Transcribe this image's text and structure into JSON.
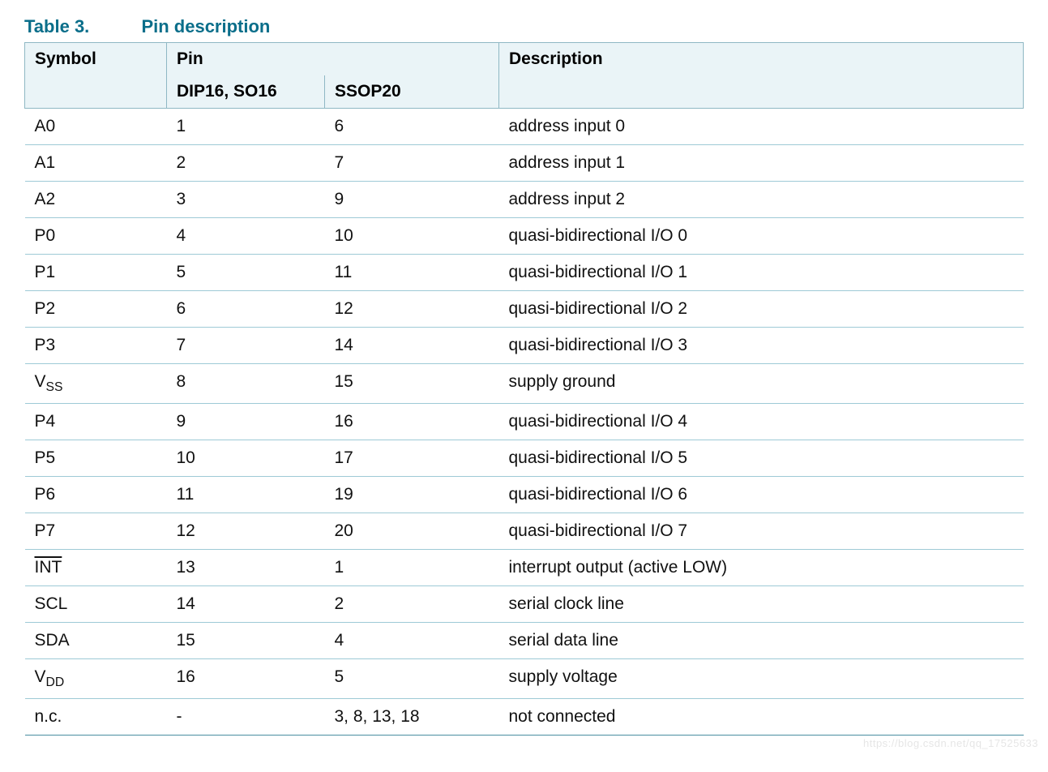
{
  "title": {
    "number": "Table 3.",
    "text": "Pin description"
  },
  "header": {
    "symbol": "Symbol",
    "pin": "Pin",
    "dip": "DIP16, SO16",
    "ssop": "SSOP20",
    "desc": "Description"
  },
  "rows": [
    {
      "symbol": "A0",
      "dip": "1",
      "ssop": "6",
      "desc": "address input 0"
    },
    {
      "symbol": "A1",
      "dip": "2",
      "ssop": "7",
      "desc": "address input 1"
    },
    {
      "symbol": "A2",
      "dip": "3",
      "ssop": "9",
      "desc": "address input 2"
    },
    {
      "symbol": "P0",
      "dip": "4",
      "ssop": "10",
      "desc": "quasi-bidirectional I/O 0"
    },
    {
      "symbol": "P1",
      "dip": "5",
      "ssop": "11",
      "desc": "quasi-bidirectional I/O 1"
    },
    {
      "symbol": "P2",
      "dip": "6",
      "ssop": "12",
      "desc": "quasi-bidirectional I/O 2"
    },
    {
      "symbol": "P3",
      "dip": "7",
      "ssop": "14",
      "desc": "quasi-bidirectional I/O 3"
    },
    {
      "symbol_html": "V<sub>SS</sub>",
      "dip": "8",
      "ssop": "15",
      "desc": "supply ground"
    },
    {
      "symbol": "P4",
      "dip": "9",
      "ssop": "16",
      "desc": "quasi-bidirectional I/O 4"
    },
    {
      "symbol": "P5",
      "dip": "10",
      "ssop": "17",
      "desc": "quasi-bidirectional I/O 5"
    },
    {
      "symbol": "P6",
      "dip": "11",
      "ssop": "19",
      "desc": "quasi-bidirectional I/O 6"
    },
    {
      "symbol": "P7",
      "dip": "12",
      "ssop": "20",
      "desc": "quasi-bidirectional I/O 7"
    },
    {
      "symbol_html": "<span class=\"overline\">INT</span>",
      "dip": "13",
      "ssop": "1",
      "desc": "interrupt output (active LOW)"
    },
    {
      "symbol": "SCL",
      "dip": "14",
      "ssop": "2",
      "desc": "serial clock line"
    },
    {
      "symbol": "SDA",
      "dip": "15",
      "ssop": "4",
      "desc": "serial data line"
    },
    {
      "symbol_html": "V<sub>DD</sub>",
      "dip": "16",
      "ssop": "5",
      "desc": "supply voltage"
    },
    {
      "symbol": "n.c.",
      "dip": "-",
      "ssop": "3, 8, 13, 18",
      "desc": "not connected"
    }
  ],
  "watermark": "https://blog.csdn.net/qq_17525633",
  "style": {
    "title_color": "#0a6e8a",
    "header_bg": "#eaf4f7",
    "header_border": "#8fb8c4",
    "row_border": "#9ecad6",
    "outer_border": "#4a8ea1",
    "title_fontsize": 22,
    "cell_fontsize": 21
  }
}
